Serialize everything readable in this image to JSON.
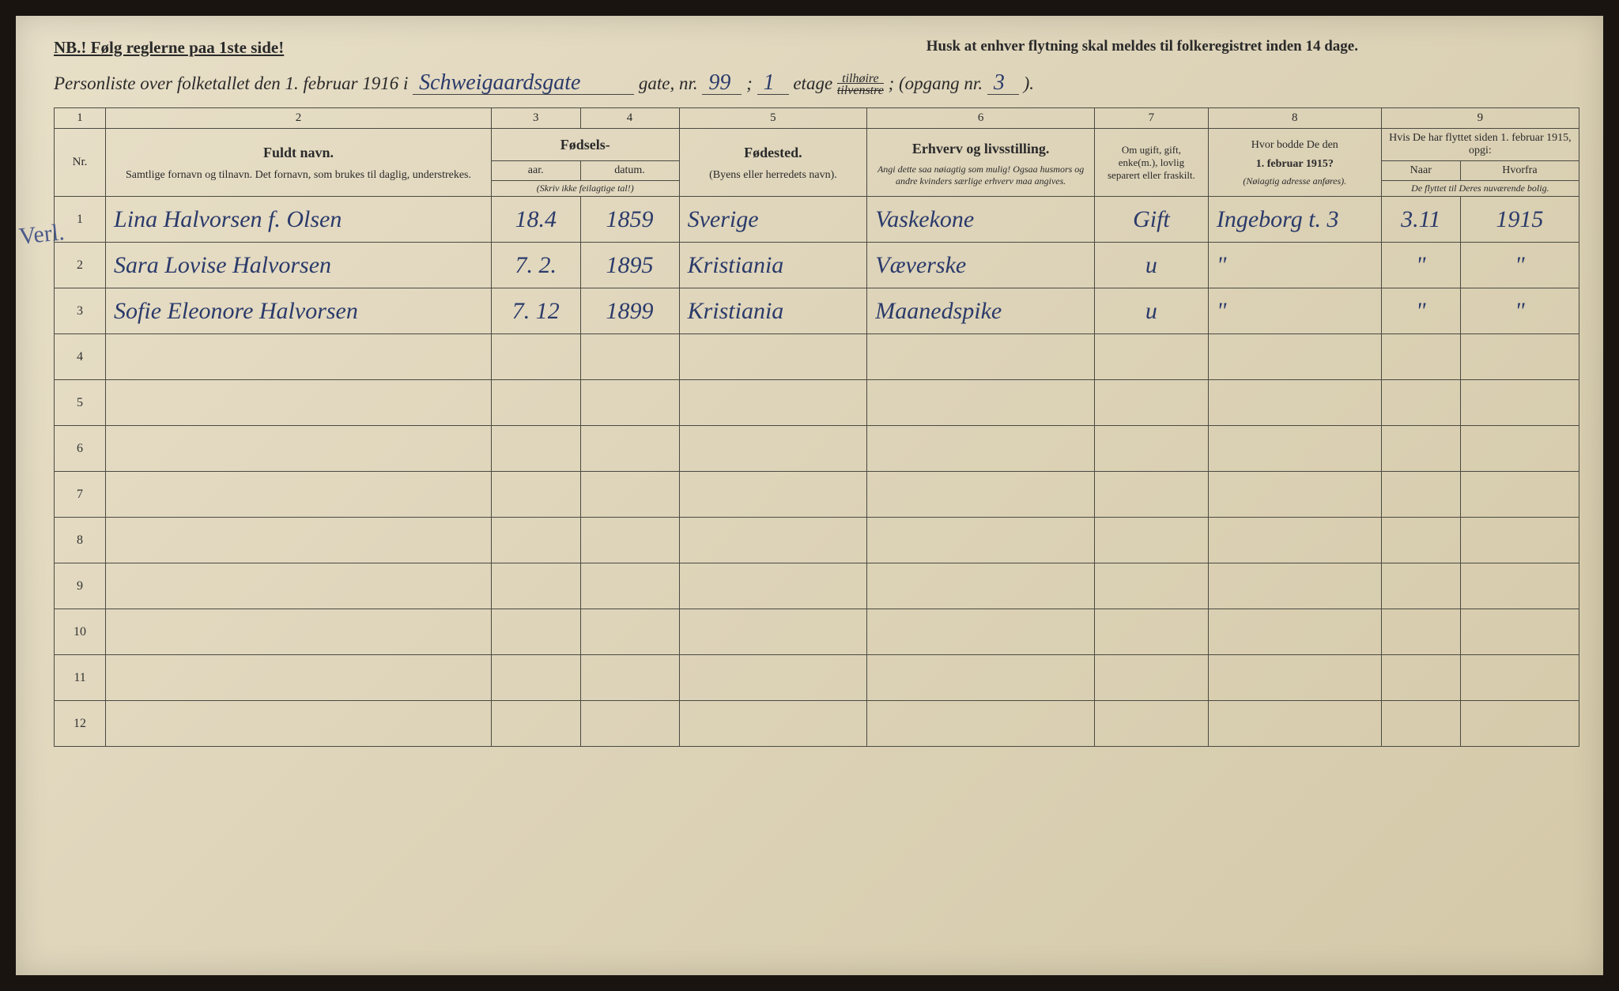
{
  "topline": {
    "nb": "NB.!  Følg reglerne paa 1ste side!",
    "reminder": "Husk at enhver flytning skal meldes til folkeregistret inden 14 dage."
  },
  "formline": {
    "prefix": "Personliste over folketallet den 1. februar 1916 i",
    "street": "Schweigaardsgate",
    "gate_nr_label": "gate, nr.",
    "gate_nr": "99",
    "sep": ";",
    "etage": "1",
    "etage_label": "etage",
    "tilh_top": "tilhøire",
    "tilh_bot": "tilvenstre",
    "opgang_label": "; (opgang nr.",
    "opgang": "3",
    "close": ")."
  },
  "colnums": [
    "1",
    "2",
    "3",
    "4",
    "5",
    "6",
    "7",
    "8",
    "9"
  ],
  "headers": {
    "nr": "Nr.",
    "fuldt": "Fuldt navn.",
    "fuldt_sub": "Samtlige fornavn og tilnavn.  Det fornavn, som brukes til daglig, understrekes.",
    "fodsels": "Fødsels-",
    "aar": "aar.",
    "datum": "datum.",
    "skriv": "(Skriv ikke feilagtige tal!)",
    "fodested": "Fødested.",
    "fodested_sub": "(Byens eller herredets navn).",
    "erhverv": "Erhverv og livsstilling.",
    "erhverv_sub": "Angi dette saa nøiagtig som mulig! Ogsaa husmors og andre kvinders særlige erhverv maa angives.",
    "ugift": "Om ugift, gift, enke(m.), lovlig separert eller fraskilt.",
    "bodde": "Hvor bodde De den",
    "bodde_date": "1. februar 1915?",
    "bodde_sub": "(Nøiagtig adresse anføres).",
    "flyttet": "Hvis De har flyttet siden 1. februar 1915, opgi:",
    "naar": "Naar",
    "hvorfra": "Hvorfra",
    "flyttet_sub": "De flyttet til Deres nuværende bolig."
  },
  "rows": [
    {
      "nr": "1",
      "navn": "Lina Halvorsen f. Olsen",
      "aar": "18.4",
      "datum": "1859",
      "sted": "Sverige",
      "erhverv": "Vaskekone",
      "sivil": "Gift",
      "bodde": "Ingeborg t. 3",
      "naar": "3.11",
      "hvorfra": "1915"
    },
    {
      "nr": "2",
      "navn": "Sara Lovise Halvorsen",
      "aar": "7. 2.",
      "datum": "1895",
      "sted": "Kristiania",
      "erhverv": "Væverske",
      "sivil": "u",
      "bodde": "\"",
      "naar": "\"",
      "hvorfra": "\""
    },
    {
      "nr": "3",
      "navn": "Sofie Eleonore Halvorsen",
      "aar": "7. 12",
      "datum": "1899",
      "sted": "Kristiania",
      "erhverv": "Maanedspike",
      "sivil": "u",
      "bodde": "\"",
      "naar": "\"",
      "hvorfra": "\""
    }
  ],
  "empty_rows": [
    "4",
    "5",
    "6",
    "7",
    "8",
    "9",
    "10",
    "11",
    "12"
  ],
  "annotations": {
    "left": "Verl."
  }
}
